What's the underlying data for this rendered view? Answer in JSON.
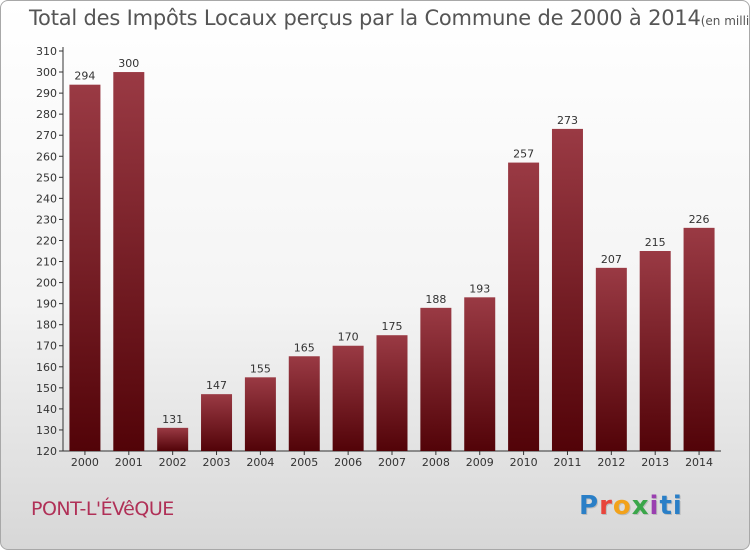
{
  "title": "Total des Impôts Locaux perçus par la Commune de 2000 à 2014",
  "unit": "(en milliers d'€)",
  "commune": "PONT-L'ÉVêQUE",
  "logo": {
    "text": "Proxiti",
    "colors": [
      "#2a7fc7",
      "#e8453c",
      "#f2a21b",
      "#3aa64a",
      "#9a3fb0",
      "#2a7fc7"
    ]
  },
  "colors": {
    "bar_top": "#9a3a44",
    "bar_bottom": "#520308",
    "label": "#333333",
    "axis": "#333333"
  },
  "chart_data": {
    "type": "bar",
    "title": "Total des Impôts Locaux perçus par la Commune de 2000 à 2014",
    "xlabel": "",
    "ylabel": "(en milliers d'€)",
    "ylim": [
      120,
      310
    ],
    "ytick_step": 10,
    "grid": false,
    "categories": [
      "2000",
      "2001",
      "2002",
      "2003",
      "2004",
      "2005",
      "2006",
      "2007",
      "2008",
      "2009",
      "2010",
      "2011",
      "2012",
      "2013",
      "2014"
    ],
    "values": [
      294,
      300,
      131,
      147,
      155,
      165,
      170,
      175,
      188,
      193,
      257,
      273,
      207,
      215,
      226
    ]
  }
}
